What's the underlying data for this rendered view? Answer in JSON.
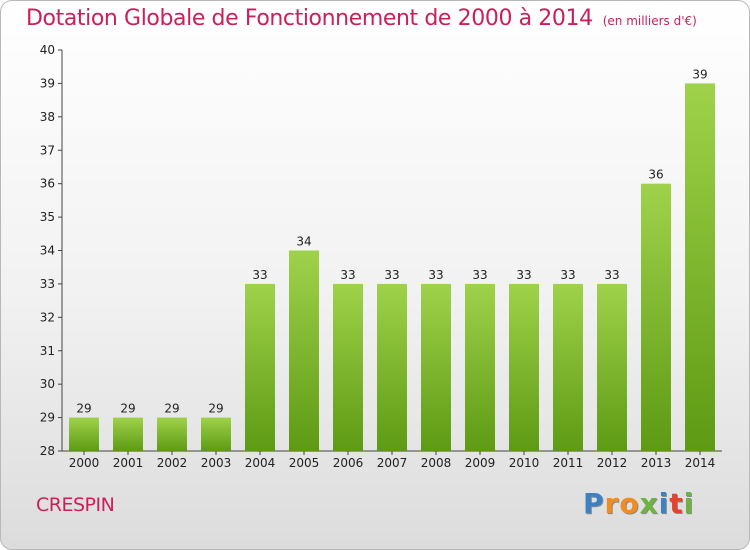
{
  "header": {
    "title": "Dotation Globale de Fonctionnement de 2000 à 2014",
    "subtitle": "(en milliers d'€)"
  },
  "footer": {
    "commune": "CRESPIN",
    "logo_letters": [
      "P",
      "r",
      "o",
      "x",
      "i",
      "t",
      "i"
    ]
  },
  "colors": {
    "title": "#cc1f5a",
    "bar_top": "#9fd24a",
    "bar_bottom": "#5e9a14",
    "logo_letters": [
      "#3b82c4",
      "#f28c1e",
      "#f28c1e",
      "#6cb33f",
      "#3b82c4",
      "#e8412c",
      "#6cb33f"
    ]
  },
  "chart_data": {
    "type": "bar",
    "categories": [
      "2000",
      "2001",
      "2002",
      "2003",
      "2004",
      "2005",
      "2006",
      "2007",
      "2008",
      "2009",
      "2010",
      "2011",
      "2012",
      "2013",
      "2014"
    ],
    "values": [
      29,
      29,
      29,
      29,
      33,
      34,
      33,
      33,
      33,
      33,
      33,
      33,
      33,
      36,
      39
    ],
    "data_labels": [
      "29",
      "29",
      "29",
      "29",
      "33",
      "34",
      "33",
      "33",
      "33",
      "33",
      "33",
      "33",
      "33",
      "36",
      "39"
    ],
    "y_ticks": [
      "28",
      "29",
      "30",
      "31",
      "32",
      "33",
      "34",
      "35",
      "36",
      "37",
      "38",
      "39",
      "40"
    ],
    "ylim": [
      28,
      40
    ],
    "grid": false,
    "legend": "none"
  }
}
